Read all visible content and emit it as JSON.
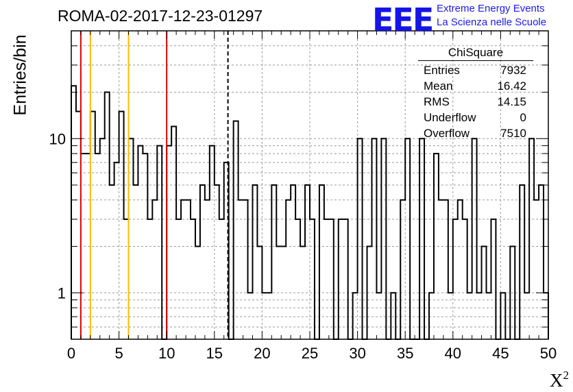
{
  "chart_data": {
    "type": "bar",
    "title": "ROMA-02-2017-12-23-01297",
    "xlabel": "X",
    "xlabel_superscript": "2",
    "ylabel": "Entries/bin",
    "x_range": [
      0,
      50
    ],
    "bin_width": 0.5,
    "log_y": true,
    "y_range": [
      0.5,
      50
    ],
    "x_ticks": [
      "0",
      "5",
      "10",
      "15",
      "20",
      "25",
      "30",
      "35",
      "40",
      "45",
      "50"
    ],
    "y_ticks": [
      "1",
      "10"
    ],
    "grid": true,
    "values": [
      22,
      15,
      8,
      8,
      15,
      8,
      10,
      20,
      5,
      7,
      15,
      3,
      10,
      5,
      9,
      8,
      3,
      4,
      9,
      0.3,
      9,
      12,
      3,
      4,
      4,
      3,
      2,
      5,
      4,
      9,
      5,
      3,
      7,
      0.3,
      13,
      4,
      4,
      1,
      5,
      2,
      1,
      1,
      5,
      2,
      2,
      4,
      5,
      3,
      2,
      5,
      3,
      0.3,
      5,
      3,
      3,
      0.3,
      3,
      3,
      0.3,
      1,
      10,
      0.3,
      2,
      10,
      1,
      10,
      0.3,
      1,
      0.3,
      4,
      10,
      0.3,
      0.3,
      10,
      0.3,
      1,
      8,
      4,
      4,
      1,
      3,
      4,
      3,
      1,
      10,
      1,
      2,
      1,
      3,
      0.3,
      1,
      0.3,
      2,
      0.3,
      5,
      1,
      10,
      4,
      5,
      1
    ],
    "markers": [
      {
        "x": 1,
        "color": "#dd0000",
        "style": "solid"
      },
      {
        "x": 2,
        "color": "#ffbb00",
        "style": "solid"
      },
      {
        "x": 6,
        "color": "#ffbb00",
        "style": "solid"
      },
      {
        "x": 10,
        "color": "#dd0000",
        "style": "solid"
      },
      {
        "x": 16.42,
        "color": "#000000",
        "style": "dashed"
      }
    ],
    "stats": {
      "name": "ChiSquare",
      "rows": [
        {
          "label": "Entries",
          "value": "7932"
        },
        {
          "label": "Mean",
          "value": "16.42"
        },
        {
          "label": "RMS",
          "value": "14.15"
        },
        {
          "label": "Underflow",
          "value": "0"
        },
        {
          "label": "Overflow",
          "value": "7510"
        }
      ]
    }
  },
  "logo": {
    "text": "EEE",
    "line1": "Extreme Energy Events",
    "line2": "La Scienza nelle Scuole",
    "color": "#1515e6"
  }
}
